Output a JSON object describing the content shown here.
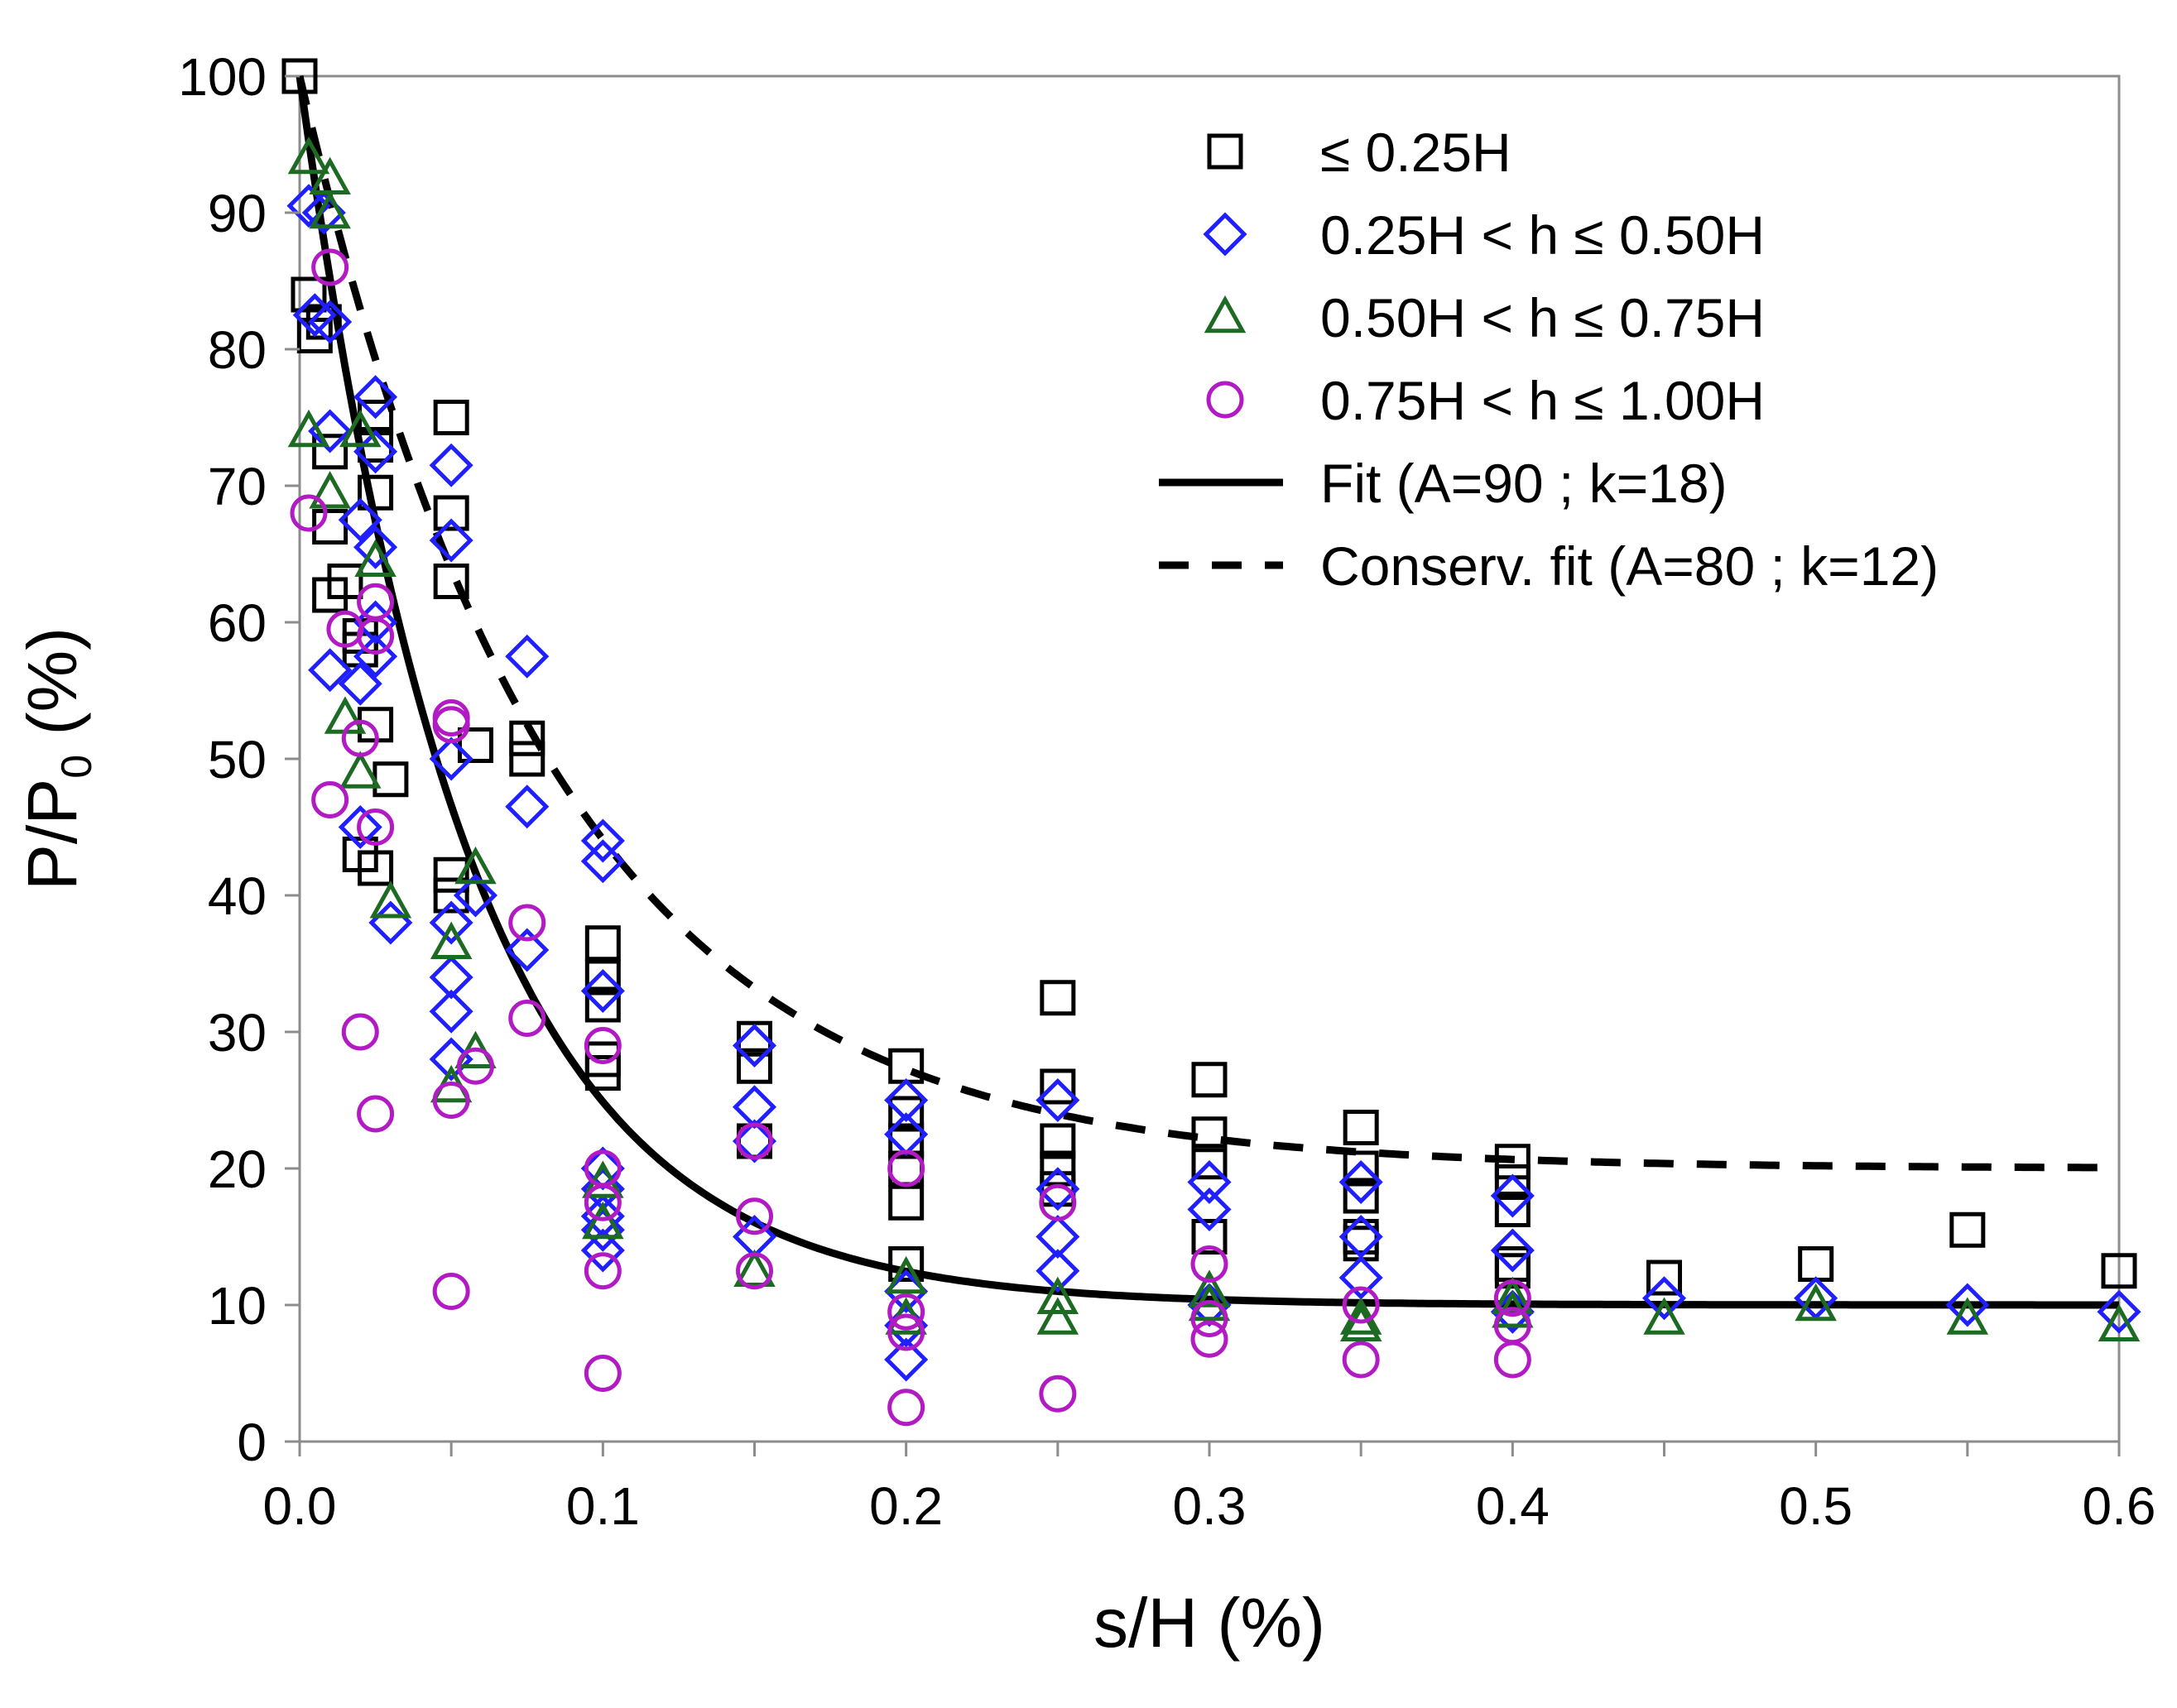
{
  "chart_data": {
    "type": "scatter",
    "xlabel": "s/H (%)",
    "ylabel_main": "P/P",
    "ylabel_sub": "0",
    "ylabel_tail": " (%)",
    "xlim": [
      0,
      0.6
    ],
    "ylim": [
      0,
      100
    ],
    "x_ticks": [
      0.0,
      0.1,
      0.2,
      0.3,
      0.4,
      0.5,
      0.6
    ],
    "x_tick_labels": [
      "0.0",
      "0.1",
      "0.2",
      "0.3",
      "0.4",
      "0.5",
      "0.6"
    ],
    "y_ticks": [
      0,
      10,
      20,
      30,
      40,
      50,
      60,
      70,
      80,
      90,
      100
    ],
    "y_tick_labels": [
      "0",
      "10",
      "20",
      "30",
      "40",
      "50",
      "60",
      "70",
      "80",
      "90",
      "100"
    ],
    "grid": false,
    "legend_position": "top-right",
    "series": [
      {
        "name": "≤ 0.25H",
        "marker": "square",
        "color": "#000000",
        "points": [
          [
            0,
            100
          ],
          [
            0.003,
            84
          ],
          [
            0.005,
            81
          ],
          [
            0.008,
            82
          ],
          [
            0.01,
            72.5
          ],
          [
            0.01,
            67
          ],
          [
            0.01,
            62
          ],
          [
            0.015,
            63
          ],
          [
            0.02,
            59
          ],
          [
            0.02,
            58
          ],
          [
            0.02,
            43
          ],
          [
            0.025,
            75
          ],
          [
            0.025,
            73
          ],
          [
            0.025,
            69.5
          ],
          [
            0.025,
            52.5
          ],
          [
            0.025,
            42
          ],
          [
            0.03,
            48.5
          ],
          [
            0.05,
            75
          ],
          [
            0.05,
            68
          ],
          [
            0.05,
            63
          ],
          [
            0.05,
            41.5
          ],
          [
            0.05,
            40
          ],
          [
            0.058,
            51
          ],
          [
            0.075,
            51.5
          ],
          [
            0.075,
            50
          ],
          [
            0.1,
            36.5
          ],
          [
            0.1,
            34
          ],
          [
            0.1,
            32
          ],
          [
            0.1,
            28
          ],
          [
            0.1,
            27
          ],
          [
            0.15,
            29.5
          ],
          [
            0.15,
            27.5
          ],
          [
            0.15,
            22
          ],
          [
            0.2,
            27.5
          ],
          [
            0.2,
            24
          ],
          [
            0.2,
            22
          ],
          [
            0.2,
            20
          ],
          [
            0.2,
            17.5
          ],
          [
            0.2,
            13
          ],
          [
            0.25,
            32.5
          ],
          [
            0.25,
            26
          ],
          [
            0.25,
            22
          ],
          [
            0.25,
            20
          ],
          [
            0.25,
            18.5
          ],
          [
            0.3,
            26.5
          ],
          [
            0.3,
            22.5
          ],
          [
            0.3,
            20.5
          ],
          [
            0.3,
            15
          ],
          [
            0.35,
            23
          ],
          [
            0.35,
            20
          ],
          [
            0.35,
            18
          ],
          [
            0.35,
            15
          ],
          [
            0.35,
            14.5
          ],
          [
            0.4,
            20.5
          ],
          [
            0.4,
            19
          ],
          [
            0.4,
            17
          ],
          [
            0.4,
            13
          ],
          [
            0.4,
            12.5
          ],
          [
            0.45,
            12
          ],
          [
            0.5,
            13
          ],
          [
            0.55,
            15.5
          ],
          [
            0.6,
            12.5
          ]
        ]
      },
      {
        "name": "0.25H < h ≤ 0.50H",
        "marker": "diamond",
        "color": "#1f1fff",
        "points": [
          [
            0.003,
            90.5
          ],
          [
            0.008,
            90
          ],
          [
            0.005,
            82.5
          ],
          [
            0.01,
            82
          ],
          [
            0.01,
            74
          ],
          [
            0.01,
            56.5
          ],
          [
            0.02,
            67.5
          ],
          [
            0.02,
            55.5
          ],
          [
            0.02,
            45
          ],
          [
            0.025,
            76.5
          ],
          [
            0.025,
            72.5
          ],
          [
            0.025,
            65.5
          ],
          [
            0.025,
            60
          ],
          [
            0.025,
            57.5
          ],
          [
            0.03,
            38
          ],
          [
            0.05,
            71.5
          ],
          [
            0.05,
            66
          ],
          [
            0.05,
            50
          ],
          [
            0.05,
            38
          ],
          [
            0.05,
            34
          ],
          [
            0.05,
            31.5
          ],
          [
            0.05,
            28
          ],
          [
            0.058,
            40
          ],
          [
            0.075,
            57.5
          ],
          [
            0.075,
            46.5
          ],
          [
            0.075,
            36
          ],
          [
            0.1,
            44
          ],
          [
            0.1,
            42.5
          ],
          [
            0.1,
            33
          ],
          [
            0.1,
            20
          ],
          [
            0.1,
            18.5
          ],
          [
            0.1,
            16.5
          ],
          [
            0.1,
            15.5
          ],
          [
            0.1,
            14
          ],
          [
            0.15,
            29
          ],
          [
            0.15,
            24.5
          ],
          [
            0.15,
            22
          ],
          [
            0.15,
            15
          ],
          [
            0.2,
            25
          ],
          [
            0.2,
            22.5
          ],
          [
            0.2,
            11
          ],
          [
            0.2,
            8.5
          ],
          [
            0.2,
            6
          ],
          [
            0.25,
            25
          ],
          [
            0.25,
            18.5
          ],
          [
            0.25,
            15
          ],
          [
            0.25,
            12.5
          ],
          [
            0.3,
            19
          ],
          [
            0.3,
            17
          ],
          [
            0.3,
            10
          ],
          [
            0.35,
            19
          ],
          [
            0.35,
            15
          ],
          [
            0.35,
            12
          ],
          [
            0.4,
            18
          ],
          [
            0.4,
            14
          ],
          [
            0.4,
            9.5
          ],
          [
            0.45,
            10.5
          ],
          [
            0.5,
            10.5
          ],
          [
            0.55,
            10
          ],
          [
            0.6,
            9.5
          ]
        ]
      },
      {
        "name": "0.50H < h ≤ 0.75H",
        "marker": "triangle",
        "color": "#1d6b22",
        "points": [
          [
            0.003,
            94
          ],
          [
            0.01,
            92.5
          ],
          [
            0.01,
            90
          ],
          [
            0.003,
            74
          ],
          [
            0.01,
            69.5
          ],
          [
            0.02,
            74
          ],
          [
            0.025,
            64.5
          ],
          [
            0.015,
            53
          ],
          [
            0.02,
            49
          ],
          [
            0.03,
            39.5
          ],
          [
            0.05,
            36.5
          ],
          [
            0.05,
            26
          ],
          [
            0.058,
            42
          ],
          [
            0.058,
            28.5
          ],
          [
            0.1,
            19
          ],
          [
            0.1,
            16
          ],
          [
            0.15,
            12.5
          ],
          [
            0.2,
            12
          ],
          [
            0.2,
            9
          ],
          [
            0.25,
            10.5
          ],
          [
            0.25,
            9
          ],
          [
            0.3,
            11
          ],
          [
            0.3,
            10
          ],
          [
            0.35,
            9
          ],
          [
            0.35,
            8.5
          ],
          [
            0.4,
            10.5
          ],
          [
            0.4,
            9.5
          ],
          [
            0.45,
            9
          ],
          [
            0.5,
            10
          ],
          [
            0.55,
            9
          ],
          [
            0.6,
            8.5
          ]
        ]
      },
      {
        "name": "0.75H < h ≤ 1.00H",
        "marker": "circle",
        "color": "#b21bc4",
        "points": [
          [
            0.01,
            86
          ],
          [
            0.003,
            68
          ],
          [
            0.015,
            59.5
          ],
          [
            0.02,
            51.5
          ],
          [
            0.025,
            61.5
          ],
          [
            0.025,
            59
          ],
          [
            0.025,
            45
          ],
          [
            0.01,
            47
          ],
          [
            0.02,
            30
          ],
          [
            0.025,
            24
          ],
          [
            0.05,
            53
          ],
          [
            0.05,
            52.5
          ],
          [
            0.05,
            25
          ],
          [
            0.05,
            11
          ],
          [
            0.058,
            27.5
          ],
          [
            0.075,
            38
          ],
          [
            0.075,
            31
          ],
          [
            0.1,
            29
          ],
          [
            0.1,
            20
          ],
          [
            0.1,
            17.5
          ],
          [
            0.1,
            12.5
          ],
          [
            0.1,
            5
          ],
          [
            0.15,
            22
          ],
          [
            0.15,
            16.5
          ],
          [
            0.15,
            12.5
          ],
          [
            0.2,
            20
          ],
          [
            0.2,
            9.5
          ],
          [
            0.2,
            8
          ],
          [
            0.2,
            2.5
          ],
          [
            0.25,
            17.5
          ],
          [
            0.25,
            3.5
          ],
          [
            0.3,
            13
          ],
          [
            0.3,
            9
          ],
          [
            0.3,
            7.5
          ],
          [
            0.35,
            10
          ],
          [
            0.35,
            6
          ],
          [
            0.4,
            10.5
          ],
          [
            0.4,
            8.5
          ],
          [
            0.4,
            6
          ]
        ]
      }
    ],
    "curves": [
      {
        "name": "Fit (A=90 ; k=18)",
        "style": "solid",
        "color": "#000000",
        "A": 90,
        "k": 18,
        "asymptote": 10
      },
      {
        "name": "Conserv. fit (A=80 ; k=12)",
        "style": "dashed",
        "color": "#000000",
        "A": 80,
        "k": 12,
        "asymptote": 20
      }
    ]
  }
}
